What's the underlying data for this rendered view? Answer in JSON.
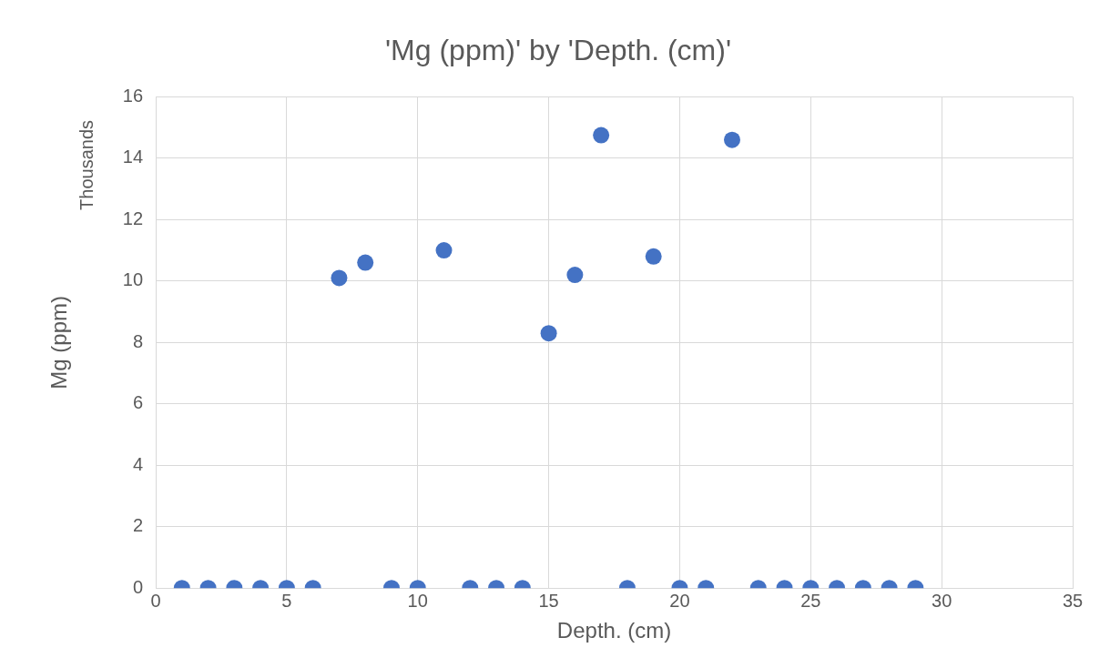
{
  "chart_data": {
    "type": "scatter",
    "title": "'Mg (ppm)' by 'Depth. (cm)'",
    "xlabel": "Depth. (cm)",
    "ylabel": "Mg (ppm)",
    "annotations": [
      "Thousands"
    ],
    "x": [
      1,
      2,
      3,
      4,
      5,
      6,
      7,
      8,
      9,
      10,
      11,
      12,
      13,
      14,
      15,
      16,
      17,
      18,
      19,
      20,
      21,
      22,
      23,
      24,
      25,
      26,
      27,
      28,
      29
    ],
    "series": [
      {
        "color": "#4472c4",
        "values": [
          0,
          0,
          0,
          0,
          0,
          0,
          10.1,
          10.6,
          0,
          0,
          11.0,
          0,
          0,
          0,
          8.3,
          10.2,
          14.75,
          0,
          10.8,
          0,
          0,
          14.6,
          0,
          0,
          0,
          0,
          0,
          0,
          0
        ]
      }
    ],
    "xlim": [
      0,
      35
    ],
    "xticks": [
      0,
      5,
      10,
      15,
      20,
      25,
      30,
      35
    ],
    "ylim": [
      0,
      16
    ],
    "yticks": [
      0,
      2,
      4,
      6,
      8,
      10,
      12,
      14,
      16
    ],
    "grid": true,
    "legend": false,
    "marker": "circle"
  }
}
